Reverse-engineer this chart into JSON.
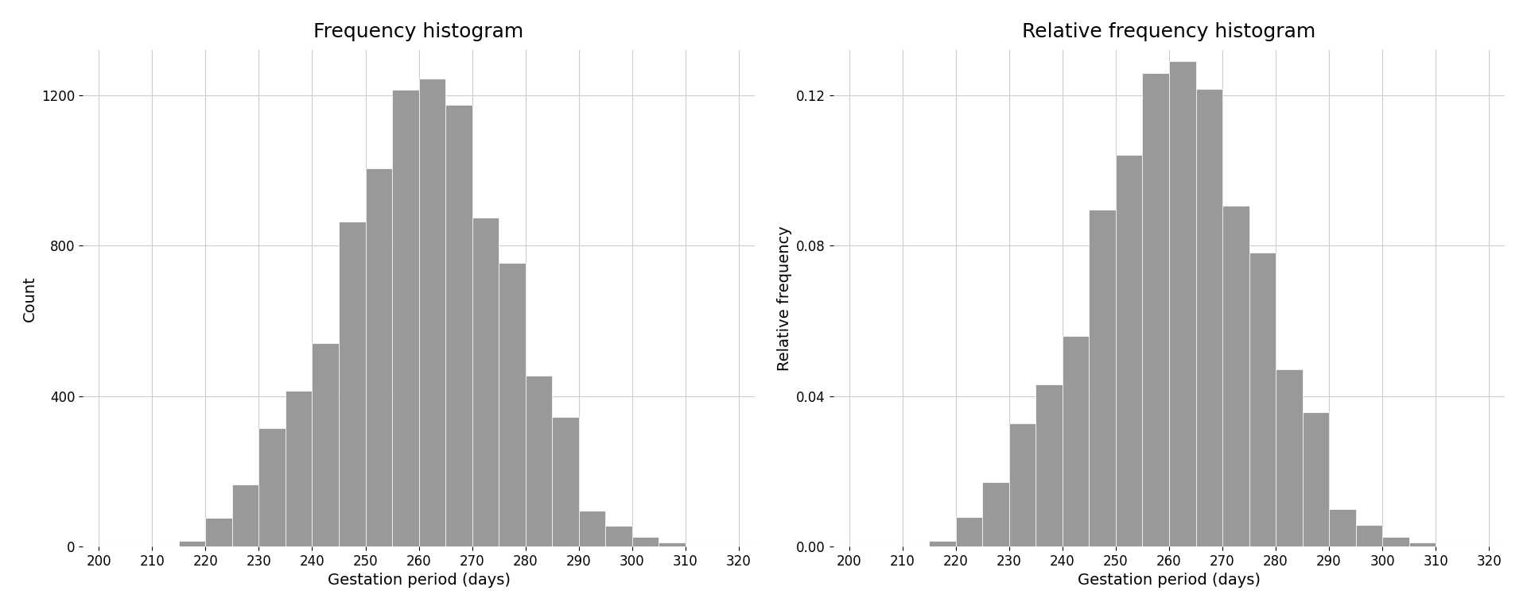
{
  "title_left": "Frequency histogram",
  "title_right": "Relative frequency histogram",
  "xlabel": "Gestation period (days)",
  "ylabel_left": "Count",
  "ylabel_right": "Relative frequency",
  "bar_color": "#999999",
  "bar_edgecolor": "white",
  "background_color": "#ffffff",
  "grid_color": "#cccccc",
  "xlim": [
    197,
    323
  ],
  "xticks": [
    200,
    210,
    220,
    230,
    240,
    250,
    260,
    270,
    280,
    290,
    300,
    310,
    320
  ],
  "ylim_left": [
    0,
    1320
  ],
  "yticks_left": [
    0,
    400,
    800,
    1200
  ],
  "ylim_right": [
    0,
    0.132
  ],
  "yticks_right": [
    0.0,
    0.04,
    0.08,
    0.12
  ],
  "title_fontsize": 18,
  "label_fontsize": 14,
  "tick_fontsize": 12,
  "bin_starts": [
    215,
    220,
    225,
    230,
    235,
    240,
    245,
    250,
    255,
    260,
    265,
    270,
    275,
    280,
    285,
    290,
    295,
    300,
    305
  ],
  "counts": [
    15,
    75,
    165,
    315,
    415,
    540,
    865,
    1005,
    1215,
    1245,
    1175,
    875,
    755,
    455,
    345,
    95,
    55,
    25,
    10
  ]
}
